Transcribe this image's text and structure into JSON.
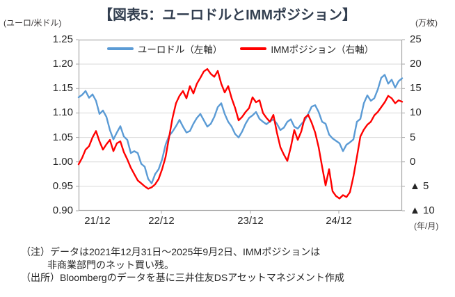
{
  "header": {
    "title": "【図表5：ユーロドルとIMMポジション】"
  },
  "legend": {
    "items": [
      {
        "id": "eurusd",
        "label": "ユーロドル（左軸）",
        "color": "#5B9BD5"
      },
      {
        "id": "imm-position",
        "label": "IMMポジション（右軸）",
        "color": "#FF0000"
      }
    ]
  },
  "notes": {
    "line1": "（注）データは2021年12月31日～2025年9月2日、IMMポジションは",
    "line2": "非商業部門のネット買い残。",
    "source": "（出所）Bloombergのデータを基に三井住友DSアセットマネジメント作成"
  },
  "chart_data": {
    "type": "line",
    "title": "【図表5：ユーロドルとIMMポジション】",
    "x_start_label": "2021年12月31日",
    "x_end_label": "2025年9月2日",
    "x_axis_unit": "(年/月)",
    "x_tick_labels": [
      "21/12",
      "22/12",
      "23/12",
      "24/12"
    ],
    "grid": true,
    "legend_position": "top-inside",
    "left_axis": {
      "unit": "(ユーロ/米ドル)",
      "min": 0.9,
      "max": 1.25,
      "ticks": [
        "1.25",
        "1.20",
        "1.15",
        "1.10",
        "1.05",
        "1.00",
        "0.95",
        "0.90"
      ]
    },
    "right_axis": {
      "unit": "(万枚)",
      "min": -10,
      "max": 25,
      "ticks": [
        "25",
        "20",
        "15",
        "10",
        "5",
        "0",
        "▲ 5",
        "▲ 10"
      ]
    },
    "series": [
      {
        "id": "eurusd-line",
        "name": "ユーロドル（左軸）",
        "axis": "left",
        "color": "#5B9BD5",
        "values": [
          1.132,
          1.137,
          1.145,
          1.131,
          1.138,
          1.125,
          1.098,
          1.105,
          1.092,
          1.065,
          1.046,
          1.06,
          1.073,
          1.052,
          1.045,
          1.018,
          1.022,
          1.018,
          0.996,
          0.99,
          0.965,
          0.956,
          0.975,
          0.985,
          1.005,
          1.035,
          1.053,
          1.062,
          1.073,
          1.086,
          1.072,
          1.06,
          1.063,
          1.078,
          1.09,
          1.098,
          1.085,
          1.072,
          1.078,
          1.092,
          1.112,
          1.12,
          1.098,
          1.082,
          1.072,
          1.057,
          1.05,
          1.062,
          1.078,
          1.09,
          1.095,
          1.102,
          1.088,
          1.082,
          1.077,
          1.083,
          1.087,
          1.078,
          1.065,
          1.07,
          1.082,
          1.087,
          1.072,
          1.068,
          1.077,
          1.085,
          1.098,
          1.113,
          1.116,
          1.102,
          1.082,
          1.078,
          1.056,
          1.048,
          1.043,
          1.038,
          1.022,
          1.035,
          1.04,
          1.046,
          1.082,
          1.088,
          1.12,
          1.136,
          1.125,
          1.13,
          1.148,
          1.172,
          1.178,
          1.16,
          1.168,
          1.152,
          1.165,
          1.171
        ]
      },
      {
        "id": "imm-position-line",
        "name": "IMMポジション（右軸）",
        "axis": "right",
        "color": "#FF0000",
        "values": [
          -0.5,
          0.8,
          2.5,
          3.2,
          5.0,
          6.3,
          4.2,
          2.5,
          3.6,
          4.5,
          2.2,
          3.8,
          4.2,
          2.0,
          0.5,
          -1.2,
          -2.5,
          -3.8,
          -4.4,
          -5.0,
          -5.5,
          -5.2,
          -4.6,
          -3.5,
          -1.5,
          1.0,
          5.0,
          9.0,
          12.0,
          13.5,
          14.5,
          13.0,
          15.5,
          14.0,
          16.0,
          17.2,
          18.5,
          19.0,
          18.0,
          17.4,
          18.6,
          16.0,
          14.2,
          15.5,
          13.0,
          11.0,
          8.5,
          9.2,
          10.2,
          11.0,
          13.2,
          12.2,
          12.6,
          10.0,
          9.0,
          8.2,
          9.6,
          6.0,
          3.0,
          1.5,
          0.2,
          3.0,
          6.5,
          4.5,
          6.2,
          9.0,
          9.6,
          8.0,
          6.0,
          3.0,
          -1.0,
          -4.8,
          -1.5,
          -6.0,
          -7.0,
          -7.5,
          -6.8,
          -7.2,
          -6.2,
          -3.0,
          1.0,
          5.2,
          6.6,
          7.6,
          8.2,
          9.5,
          10.2,
          11.2,
          12.2,
          13.5,
          13.0,
          12.0,
          12.6,
          12.3
        ]
      }
    ]
  }
}
